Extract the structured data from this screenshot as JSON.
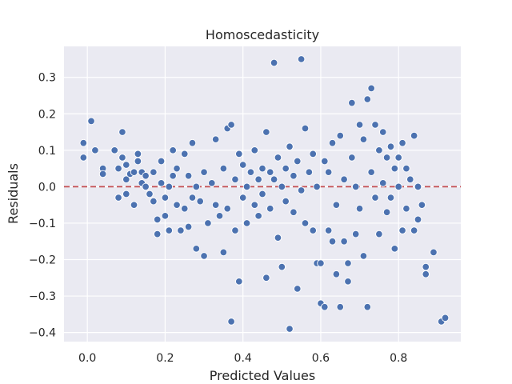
{
  "chart_data": {
    "type": "scatter",
    "title": "Homoscedasticity",
    "xlabel": "Predicted Values",
    "ylabel": "Residuals",
    "xlim": [
      -0.06,
      0.96
    ],
    "ylim": [
      -0.425,
      0.385
    ],
    "xticks": [
      0.0,
      0.2,
      0.4,
      0.6,
      0.8
    ],
    "xtick_labels": [
      "0.0",
      "0.2",
      "0.4",
      "0.6",
      "0.8"
    ],
    "yticks": [
      -0.4,
      -0.3,
      -0.2,
      -0.1,
      0.0,
      0.1,
      0.2,
      0.3
    ],
    "ytick_labels": [
      "−0.4",
      "−0.3",
      "−0.2",
      "−0.1",
      "0.0",
      "0.1",
      "0.2",
      "0.3"
    ],
    "grid": true,
    "reference_line": {
      "y": 0.0,
      "style": "dashed",
      "color": "#c44e52"
    },
    "colors": {
      "points": "#4c72b0",
      "background": "#eaeaf2",
      "grid": "#ffffff"
    },
    "points": [
      [
        -0.01,
        0.12
      ],
      [
        -0.01,
        0.08
      ],
      [
        0.01,
        0.18
      ],
      [
        0.02,
        0.1
      ],
      [
        0.04,
        0.05
      ],
      [
        0.04,
        0.035
      ],
      [
        0.07,
        0.1
      ],
      [
        0.08,
        0.05
      ],
      [
        0.08,
        -0.03
      ],
      [
        0.09,
        0.08
      ],
      [
        0.09,
        0.15
      ],
      [
        0.1,
        0.06
      ],
      [
        0.1,
        0.02
      ],
      [
        0.1,
        -0.02
      ],
      [
        0.11,
        0.035
      ],
      [
        0.12,
        0.04
      ],
      [
        0.12,
        -0.05
      ],
      [
        0.13,
        0.09
      ],
      [
        0.13,
        0.07
      ],
      [
        0.14,
        0.04
      ],
      [
        0.14,
        0.01
      ],
      [
        0.15,
        0.03
      ],
      [
        0.15,
        0.0
      ],
      [
        0.16,
        -0.02
      ],
      [
        0.17,
        0.04
      ],
      [
        0.17,
        -0.04
      ],
      [
        0.18,
        -0.13
      ],
      [
        0.18,
        -0.09
      ],
      [
        0.19,
        0.07
      ],
      [
        0.19,
        0.01
      ],
      [
        0.2,
        -0.08
      ],
      [
        0.2,
        -0.03
      ],
      [
        0.21,
        0.0
      ],
      [
        0.21,
        -0.12
      ],
      [
        0.22,
        0.1
      ],
      [
        0.22,
        0.03
      ],
      [
        0.23,
        -0.05
      ],
      [
        0.23,
        0.05
      ],
      [
        0.24,
        -0.12
      ],
      [
        0.25,
        -0.06
      ],
      [
        0.25,
        0.09
      ],
      [
        0.26,
        -0.11
      ],
      [
        0.26,
        0.03
      ],
      [
        0.27,
        0.12
      ],
      [
        0.27,
        -0.03
      ],
      [
        0.28,
        -0.17
      ],
      [
        0.28,
        0.0
      ],
      [
        0.29,
        -0.04
      ],
      [
        0.3,
        -0.19
      ],
      [
        0.3,
        0.04
      ],
      [
        0.31,
        -0.1
      ],
      [
        0.32,
        0.01
      ],
      [
        0.33,
        0.13
      ],
      [
        0.33,
        -0.05
      ],
      [
        0.34,
        -0.08
      ],
      [
        0.35,
        0.05
      ],
      [
        0.35,
        -0.18
      ],
      [
        0.36,
        0.16
      ],
      [
        0.36,
        -0.06
      ],
      [
        0.37,
        0.17
      ],
      [
        0.37,
        -0.37
      ],
      [
        0.38,
        0.02
      ],
      [
        0.38,
        -0.12
      ],
      [
        0.39,
        -0.26
      ],
      [
        0.39,
        0.09
      ],
      [
        0.4,
        -0.03
      ],
      [
        0.4,
        0.06
      ],
      [
        0.41,
        0.0
      ],
      [
        0.41,
        -0.1
      ],
      [
        0.42,
        0.04
      ],
      [
        0.43,
        -0.05
      ],
      [
        0.43,
        0.1
      ],
      [
        0.44,
        0.02
      ],
      [
        0.44,
        -0.08
      ],
      [
        0.45,
        0.05
      ],
      [
        0.45,
        -0.02
      ],
      [
        0.46,
        0.15
      ],
      [
        0.46,
        -0.25
      ],
      [
        0.47,
        0.04
      ],
      [
        0.47,
        -0.06
      ],
      [
        0.48,
        0.34
      ],
      [
        0.48,
        0.02
      ],
      [
        0.49,
        -0.14
      ],
      [
        0.49,
        0.08
      ],
      [
        0.5,
        -0.22
      ],
      [
        0.5,
        0.0
      ],
      [
        0.51,
        0.05
      ],
      [
        0.51,
        -0.04
      ],
      [
        0.52,
        0.11
      ],
      [
        0.52,
        -0.39
      ],
      [
        0.53,
        0.03
      ],
      [
        0.53,
        -0.07
      ],
      [
        0.54,
        -0.28
      ],
      [
        0.54,
        0.07
      ],
      [
        0.55,
        0.35
      ],
      [
        0.55,
        -0.01
      ],
      [
        0.56,
        0.16
      ],
      [
        0.56,
        -0.1
      ],
      [
        0.57,
        0.04
      ],
      [
        0.58,
        -0.12
      ],
      [
        0.58,
        0.09
      ],
      [
        0.59,
        -0.21
      ],
      [
        0.59,
        0.0
      ],
      [
        0.6,
        -0.32
      ],
      [
        0.6,
        -0.21
      ],
      [
        0.61,
        0.07
      ],
      [
        0.61,
        -0.33
      ],
      [
        0.62,
        -0.12
      ],
      [
        0.62,
        0.04
      ],
      [
        0.63,
        -0.15
      ],
      [
        0.63,
        0.12
      ],
      [
        0.64,
        -0.24
      ],
      [
        0.64,
        -0.05
      ],
      [
        0.65,
        0.14
      ],
      [
        0.65,
        -0.33
      ],
      [
        0.66,
        -0.15
      ],
      [
        0.66,
        0.02
      ],
      [
        0.67,
        -0.21
      ],
      [
        0.67,
        -0.26
      ],
      [
        0.68,
        0.23
      ],
      [
        0.68,
        0.08
      ],
      [
        0.69,
        -0.13
      ],
      [
        0.69,
        0.0
      ],
      [
        0.7,
        0.17
      ],
      [
        0.7,
        -0.06
      ],
      [
        0.71,
        0.13
      ],
      [
        0.71,
        -0.19
      ],
      [
        0.72,
        0.24
      ],
      [
        0.72,
        -0.33
      ],
      [
        0.73,
        0.27
      ],
      [
        0.73,
        0.04
      ],
      [
        0.74,
        0.17
      ],
      [
        0.74,
        -0.03
      ],
      [
        0.75,
        0.1
      ],
      [
        0.75,
        -0.13
      ],
      [
        0.76,
        0.15
      ],
      [
        0.76,
        0.01
      ],
      [
        0.77,
        0.08
      ],
      [
        0.77,
        -0.07
      ],
      [
        0.78,
        0.11
      ],
      [
        0.78,
        -0.03
      ],
      [
        0.79,
        0.05
      ],
      [
        0.79,
        -0.17
      ],
      [
        0.8,
        0.0
      ],
      [
        0.8,
        0.08
      ],
      [
        0.81,
        -0.12
      ],
      [
        0.81,
        0.12
      ],
      [
        0.82,
        0.05
      ],
      [
        0.82,
        -0.06
      ],
      [
        0.83,
        0.02
      ],
      [
        0.84,
        -0.12
      ],
      [
        0.84,
        0.14
      ],
      [
        0.85,
        -0.09
      ],
      [
        0.85,
        0.0
      ],
      [
        0.86,
        -0.05
      ],
      [
        0.87,
        -0.22
      ],
      [
        0.87,
        -0.24
      ],
      [
        0.89,
        -0.18
      ],
      [
        0.91,
        -0.37
      ],
      [
        0.92,
        -0.36
      ]
    ]
  }
}
